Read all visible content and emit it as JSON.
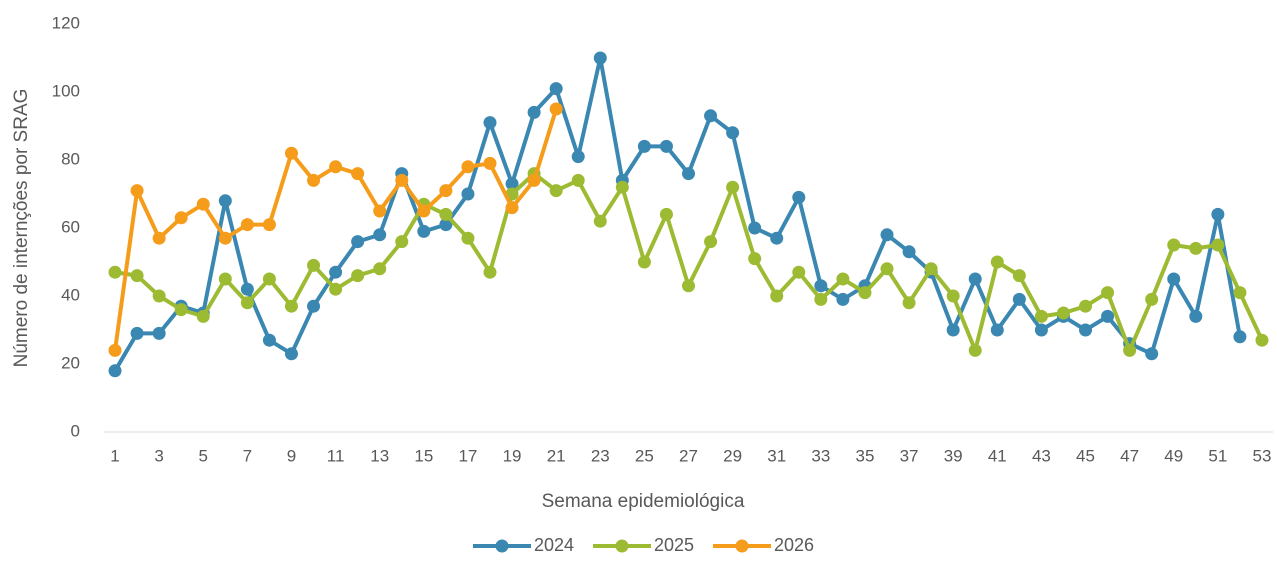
{
  "chart_data": {
    "type": "line",
    "xlabel": "Semana epidemiológica",
    "ylabel": "Número de internções por SRAG",
    "x": [
      1,
      2,
      3,
      4,
      5,
      6,
      7,
      8,
      9,
      10,
      11,
      12,
      13,
      14,
      15,
      16,
      17,
      18,
      19,
      20,
      21,
      22,
      23,
      24,
      25,
      26,
      27,
      28,
      29,
      30,
      31,
      32,
      33,
      34,
      35,
      36,
      37,
      38,
      39,
      40,
      41,
      42,
      43,
      44,
      45,
      46,
      47,
      48,
      49,
      50,
      51,
      52,
      53
    ],
    "series": [
      {
        "name": "2024",
        "color": "#3a87b2",
        "values": [
          18,
          29,
          29,
          37,
          35,
          68,
          42,
          27,
          23,
          37,
          47,
          56,
          58,
          76,
          59,
          61,
          70,
          91,
          73,
          94,
          101,
          81,
          110,
          74,
          84,
          84,
          76,
          93,
          88,
          60,
          57,
          69,
          43,
          39,
          43,
          58,
          53,
          47,
          30,
          45,
          30,
          39,
          30,
          34,
          30,
          34,
          26,
          23,
          45,
          34,
          64,
          28,
          null
        ]
      },
      {
        "name": "2025",
        "color": "#9dbb32",
        "values": [
          47,
          46,
          40,
          36,
          34,
          45,
          38,
          45,
          37,
          49,
          42,
          46,
          48,
          56,
          67,
          64,
          57,
          47,
          70,
          76,
          71,
          74,
          62,
          72,
          50,
          64,
          43,
          56,
          72,
          51,
          40,
          47,
          39,
          45,
          41,
          48,
          38,
          48,
          40,
          24,
          50,
          46,
          34,
          35,
          37,
          41,
          24,
          39,
          55,
          54,
          55,
          41,
          27
        ]
      },
      {
        "name": "2026",
        "color": "#f59c1a",
        "values": [
          24,
          71,
          57,
          63,
          67,
          57,
          61,
          61,
          82,
          74,
          78,
          76,
          65,
          74,
          65,
          71,
          78,
          79,
          66,
          74,
          95,
          null,
          null,
          null,
          null,
          null,
          null,
          null,
          null,
          null,
          null,
          null,
          null,
          null,
          null,
          null,
          null,
          null,
          null,
          null,
          null,
          null,
          null,
          null,
          null,
          null,
          null,
          null,
          null,
          null,
          null,
          null,
          null
        ]
      }
    ],
    "xlim": [
      0.5,
      53.5
    ],
    "xticks": [
      1,
      3,
      5,
      7,
      9,
      11,
      13,
      15,
      17,
      19,
      21,
      23,
      25,
      27,
      29,
      31,
      33,
      35,
      37,
      39,
      41,
      43,
      45,
      47,
      49,
      51,
      53
    ],
    "ylim": [
      0,
      120
    ],
    "yticks": [
      0,
      20,
      40,
      60,
      80,
      100,
      120
    ],
    "grid": false,
    "legend": "bottom"
  }
}
